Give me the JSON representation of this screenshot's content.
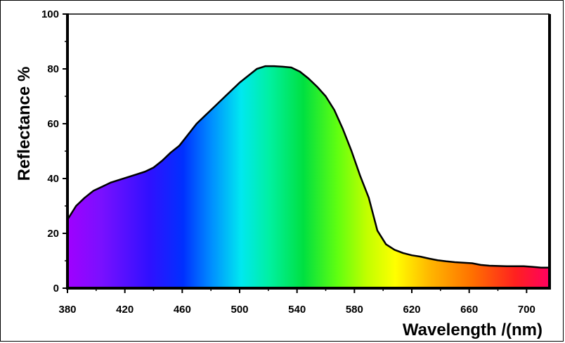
{
  "chart_data": {
    "type": "area",
    "title": "",
    "xlabel": "Wavelength /(nm)",
    "ylabel": "Reflectance %",
    "xlim": [
      380,
      716
    ],
    "ylim": [
      0,
      100
    ],
    "x_ticks": [
      380,
      420,
      460,
      500,
      540,
      580,
      620,
      660,
      700
    ],
    "y_ticks": [
      0,
      20,
      40,
      60,
      80,
      100
    ],
    "grid": false,
    "fill": "visible-spectrum gradient",
    "x": [
      380,
      386,
      392,
      398,
      404,
      410,
      416,
      422,
      428,
      434,
      440,
      446,
      452,
      458,
      464,
      470,
      476,
      482,
      488,
      494,
      500,
      506,
      512,
      518,
      524,
      530,
      536,
      542,
      548,
      554,
      560,
      566,
      572,
      578,
      584,
      590,
      596,
      602,
      608,
      614,
      620,
      626,
      632,
      638,
      644,
      650,
      656,
      662,
      668,
      674,
      680,
      686,
      692,
      698,
      704,
      710,
      716
    ],
    "y": [
      25,
      30,
      33,
      35.5,
      37,
      38.5,
      39.5,
      40.5,
      41.5,
      42.5,
      44,
      46.5,
      49.5,
      52,
      56,
      60,
      63,
      66,
      69,
      72,
      75,
      77.5,
      80,
      81,
      81,
      80.8,
      80.5,
      79,
      76.5,
      73.5,
      70,
      65,
      58,
      50,
      41,
      33,
      21,
      16,
      14,
      12.8,
      12,
      11.5,
      10.8,
      10.2,
      9.8,
      9.5,
      9.3,
      9.1,
      8.5,
      8.2,
      8.1,
      8,
      8,
      8,
      7.8,
      7.5,
      7.5
    ]
  }
}
